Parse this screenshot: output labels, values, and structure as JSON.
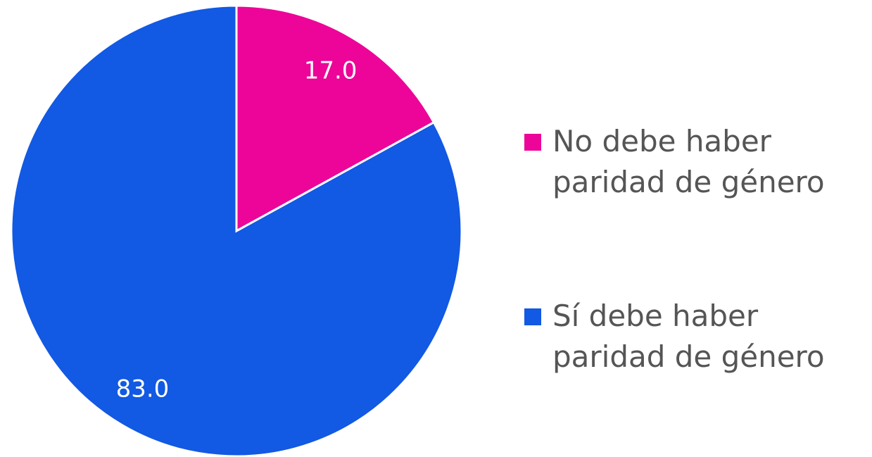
{
  "chart_data": {
    "type": "pie",
    "categories": [
      "No debe haber paridad de género",
      "Sí debe haber paridad de género"
    ],
    "values": [
      17,
      83
    ],
    "value_labels": [
      "17.0",
      "83.0"
    ],
    "colors": [
      "#ec0598",
      "#1259e3"
    ],
    "legend": "right"
  }
}
